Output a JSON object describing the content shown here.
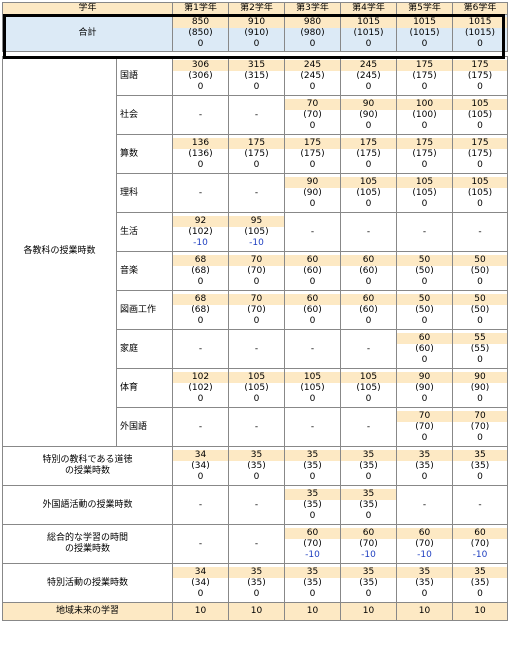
{
  "header": [
    "学年",
    "第1学年",
    "第2学年",
    "第3学年",
    "第4学年",
    "第5学年",
    "第6学年"
  ],
  "total": {
    "label": "合計",
    "cells": [
      [
        "850",
        "(850)",
        "0"
      ],
      [
        "910",
        "(910)",
        "0"
      ],
      [
        "980",
        "(980)",
        "0"
      ],
      [
        "1015",
        "(1015)",
        "0"
      ],
      [
        "1015",
        "(1015)",
        "0"
      ],
      [
        "1015",
        "(1015)",
        "0"
      ]
    ]
  },
  "subjects_group_label": "各教科の授業時数",
  "subjects": [
    {
      "name": "国語",
      "cells": [
        [
          "306",
          "(306)",
          "0"
        ],
        [
          "315",
          "(315)",
          "0"
        ],
        [
          "245",
          "(245)",
          "0"
        ],
        [
          "245",
          "(245)",
          "0"
        ],
        [
          "175",
          "(175)",
          "0"
        ],
        [
          "175",
          "(175)",
          "0"
        ]
      ]
    },
    {
      "name": "社会",
      "cells": [
        [
          "-"
        ],
        [
          "-"
        ],
        [
          "70",
          "(70)",
          "0"
        ],
        [
          "90",
          "(90)",
          "0"
        ],
        [
          "100",
          "(100)",
          "0"
        ],
        [
          "105",
          "(105)",
          "0"
        ]
      ]
    },
    {
      "name": "算数",
      "cells": [
        [
          "136",
          "(136)",
          "0"
        ],
        [
          "175",
          "(175)",
          "0"
        ],
        [
          "175",
          "(175)",
          "0"
        ],
        [
          "175",
          "(175)",
          "0"
        ],
        [
          "175",
          "(175)",
          "0"
        ],
        [
          "175",
          "(175)",
          "0"
        ]
      ]
    },
    {
      "name": "理科",
      "cells": [
        [
          "-"
        ],
        [
          "-"
        ],
        [
          "90",
          "(90)",
          "0"
        ],
        [
          "105",
          "(105)",
          "0"
        ],
        [
          "105",
          "(105)",
          "0"
        ],
        [
          "105",
          "(105)",
          "0"
        ]
      ]
    },
    {
      "name": "生活",
      "cells": [
        [
          "92",
          "(102)",
          "-10"
        ],
        [
          "95",
          "(105)",
          "-10"
        ],
        [
          "-"
        ],
        [
          "-"
        ],
        [
          "-"
        ],
        [
          "-"
        ]
      ]
    },
    {
      "name": "音楽",
      "cells": [
        [
          "68",
          "(68)",
          "0"
        ],
        [
          "70",
          "(70)",
          "0"
        ],
        [
          "60",
          "(60)",
          "0"
        ],
        [
          "60",
          "(60)",
          "0"
        ],
        [
          "50",
          "(50)",
          "0"
        ],
        [
          "50",
          "(50)",
          "0"
        ]
      ]
    },
    {
      "name": "図画工作",
      "cells": [
        [
          "68",
          "(68)",
          "0"
        ],
        [
          "70",
          "(70)",
          "0"
        ],
        [
          "60",
          "(60)",
          "0"
        ],
        [
          "60",
          "(60)",
          "0"
        ],
        [
          "50",
          "(50)",
          "0"
        ],
        [
          "50",
          "(50)",
          "0"
        ]
      ]
    },
    {
      "name": "家庭",
      "cells": [
        [
          "-"
        ],
        [
          "-"
        ],
        [
          "-"
        ],
        [
          "-"
        ],
        [
          "60",
          "(60)",
          "0"
        ],
        [
          "55",
          "(55)",
          "0"
        ]
      ]
    },
    {
      "name": "体育",
      "cells": [
        [
          "102",
          "(102)",
          "0"
        ],
        [
          "105",
          "(105)",
          "0"
        ],
        [
          "105",
          "(105)",
          "0"
        ],
        [
          "105",
          "(105)",
          "0"
        ],
        [
          "90",
          "(90)",
          "0"
        ],
        [
          "90",
          "(90)",
          "0"
        ]
      ]
    },
    {
      "name": "外国語",
      "cells": [
        [
          "-"
        ],
        [
          "-"
        ],
        [
          "-"
        ],
        [
          "-"
        ],
        [
          "70",
          "(70)",
          "0"
        ],
        [
          "70",
          "(70)",
          "0"
        ]
      ]
    }
  ],
  "others": [
    {
      "label1": "特別の教科である道徳",
      "label2": "の授業時数",
      "cells": [
        [
          "34",
          "(34)",
          "0"
        ],
        [
          "35",
          "(35)",
          "0"
        ],
        [
          "35",
          "(35)",
          "0"
        ],
        [
          "35",
          "(35)",
          "0"
        ],
        [
          "35",
          "(35)",
          "0"
        ],
        [
          "35",
          "(35)",
          "0"
        ]
      ]
    },
    {
      "label1": "外国語活動の授業時数",
      "label2": "",
      "cells": [
        [
          "-"
        ],
        [
          "-"
        ],
        [
          "35",
          "(35)",
          "0"
        ],
        [
          "35",
          "(35)",
          "0"
        ],
        [
          "-"
        ],
        [
          "-"
        ]
      ]
    },
    {
      "label1": "総合的な学習の時間",
      "label2": "の授業時数",
      "cells": [
        [
          "-"
        ],
        [
          "-"
        ],
        [
          "60",
          "(70)",
          "-10"
        ],
        [
          "60",
          "(70)",
          "-10"
        ],
        [
          "60",
          "(70)",
          "-10"
        ],
        [
          "60",
          "(70)",
          "-10"
        ]
      ]
    },
    {
      "label1": "特別活動の授業時数",
      "label2": "",
      "cells": [
        [
          "34",
          "(34)",
          "0"
        ],
        [
          "35",
          "(35)",
          "0"
        ],
        [
          "35",
          "(35)",
          "0"
        ],
        [
          "35",
          "(35)",
          "0"
        ],
        [
          "35",
          "(35)",
          "0"
        ],
        [
          "35",
          "(35)",
          "0"
        ]
      ]
    }
  ],
  "regional": {
    "label": "地域未来の学習",
    "values": [
      "10",
      "10",
      "10",
      "10",
      "10",
      "10"
    ]
  },
  "colors": {
    "highlight": "#fde9c4",
    "total_bg": "#dceaf6",
    "negative": "#1f3fc0",
    "grid": "#888888"
  }
}
